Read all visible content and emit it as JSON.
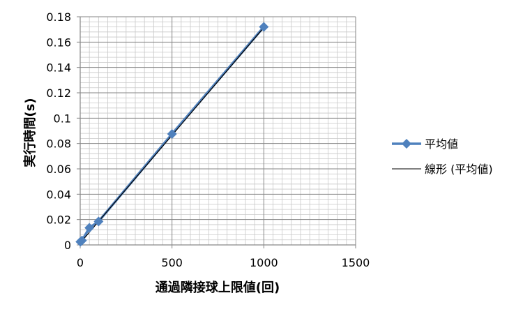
{
  "chart_data": {
    "type": "scatter",
    "xlabel": "通過隣接球上限値(回)",
    "ylabel": "実行時間(s)",
    "xlim": [
      0,
      1500
    ],
    "ylim": [
      0,
      0.18
    ],
    "x_ticks": [
      "0",
      "500",
      "1000",
      "1500"
    ],
    "y_ticks": [
      "0",
      "0.02",
      "0.04",
      "0.06",
      "0.08",
      "0.1",
      "0.12",
      "0.14",
      "0.16",
      "0.18"
    ],
    "grid": true,
    "legend_position": "right",
    "series": [
      {
        "name": "平均値",
        "style": "line-with-diamond-markers",
        "color": "#4F81BD",
        "points": [
          {
            "x": 1,
            "y": 0.0025
          },
          {
            "x": 10,
            "y": 0.0035
          },
          {
            "x": 50,
            "y": 0.0135
          },
          {
            "x": 100,
            "y": 0.0185
          },
          {
            "x": 500,
            "y": 0.0875
          },
          {
            "x": 1000,
            "y": 0.172
          }
        ]
      },
      {
        "name": "線形 (平均値)",
        "style": "trendline",
        "color": "#000000",
        "points": [
          {
            "x": 0,
            "y": 0.0015
          },
          {
            "x": 1000,
            "y": 0.1715
          }
        ]
      }
    ]
  }
}
